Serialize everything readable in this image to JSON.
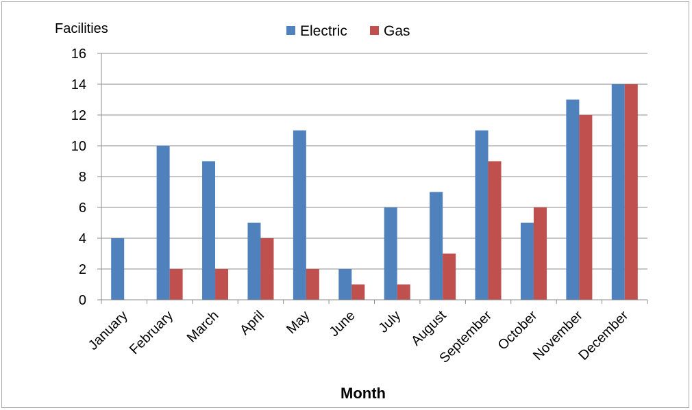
{
  "chart_data": {
    "type": "bar",
    "categories": [
      "January",
      "February",
      "March",
      "April",
      "May",
      "June",
      "July",
      "August",
      "September",
      "October",
      "November",
      "December"
    ],
    "series": [
      {
        "name": "Electric",
        "color": "#4f81bd",
        "values": [
          4,
          10,
          9,
          5,
          11,
          2,
          6,
          7,
          11,
          5,
          13,
          14
        ]
      },
      {
        "name": "Gas",
        "color": "#c0504d",
        "values": [
          0,
          2,
          2,
          4,
          2,
          1,
          1,
          3,
          9,
          6,
          12,
          14
        ]
      }
    ],
    "title": "",
    "xlabel": "Month",
    "ylabel": "Facilities",
    "ylim": [
      0,
      16
    ],
    "yticks": [
      0,
      2,
      4,
      6,
      8,
      10,
      12,
      14,
      16
    ],
    "grid": true,
    "legend_position": "top-center"
  }
}
